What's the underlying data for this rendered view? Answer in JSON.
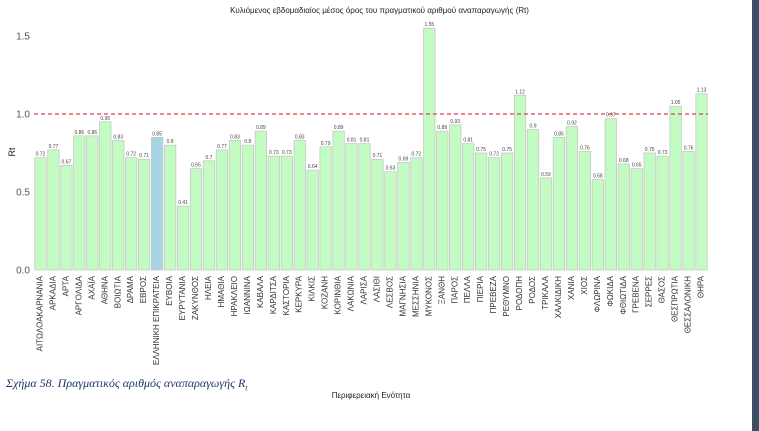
{
  "chart_data": {
    "type": "bar",
    "title": "Κυλιόμενος εβδομαδιαίος μέσος όρος του πραγματικού αριθμού αναπαραγωγής (Rt)",
    "xlabel": "Περιφερειακή Ενότητα",
    "ylabel": "Rt",
    "ylim": [
      0,
      1.6
    ],
    "yticks": [
      "0.0",
      "0.5",
      "1.0",
      "1.5"
    ],
    "ytick_values": [
      0,
      0.5,
      1.0,
      1.5
    ],
    "reference_line": {
      "value": 1.0,
      "style": "dashed",
      "color": "#e0424b"
    },
    "bar_color": "#c2fcc2",
    "highlight_color": "#a8d5e6",
    "highlight_category": "ΕΛΛΗΝΙΚΗ ΕΠΙΚΡΑΤΕΙΑ",
    "categories": [
      "ΑΙΤΩΛΟΑΚΑΡΝΑΝΙΑ",
      "ΑΡΚΑΔΙΑ",
      "ΑΡΤΑ",
      "ΑΡΓΟΛΙΔΑ",
      "ΑΧΑΪΑ",
      "ΑΘΗΝΑ",
      "ΒΟΙΩΤΙΑ",
      "ΔΡΑΜΑ",
      "ΕΒΡΟΣ",
      "ΕΛΛΗΝΙΚΗ ΕΠΙΚΡΑΤΕΙΑ",
      "ΕΥΒΟΙΑ",
      "ΕΥΡΥΤΑΝΙΑ",
      "ΖΑΚΥΝΘΟΣ",
      "ΗΛΕΙΑ",
      "ΗΜΑΘΙΑ",
      "ΗΡΑΚΛΕΙΟ",
      "ΙΩΑΝΝΙΝΑ",
      "ΚΑΒΑΛΑ",
      "ΚΑΡΔΙΤΣΑ",
      "ΚΑΣΤΟΡΙΑ",
      "ΚΕΡΚΥΡΑ",
      "ΚΙΛΚΙΣ",
      "ΚΟΖΑΝΗ",
      "ΚΟΡΙΝΘΙΑ",
      "ΛΑΚΩΝΙΑ",
      "ΛΑΡΙΣΑ",
      "ΛΑΣΙΘΙ",
      "ΛΕΣΒΟΣ",
      "ΜΑΓΝΗΣΙΑ",
      "ΜΕΣΣΗΝΙΑ",
      "ΜΥΚΟΝΟΣ",
      "ΞΑΝΘΗ",
      "ΠΑΡΟΣ",
      "ΠΕΛΛΑ",
      "ΠΙΕΡΙΑ",
      "ΠΡΕΒΕΖΑ",
      "ΡΕΘΥΜΝΟ",
      "ΡΟΔΟΠΗ",
      "ΡΟΔΟΣ",
      "ΤΡΙΚΑΛΑ",
      "ΧΑΛΚΙΔΙΚΗ",
      "ΧΑΝΙΑ",
      "ΧΙΟΣ",
      "ΦΛΩΡΙΝΑ",
      "ΦΩΚΙΔΑ",
      "ΦΘΙΩΤΙΔΑ",
      "ΓΡΕΒΕΝΑ",
      "ΣΕΡΡΕΣ",
      "ΘΑΣΟΣ",
      "ΘΕΣΠΡΩΤΙΑ",
      "ΘΕΣΣΑΛΟΝΙΚΗ",
      "ΘΗΡΑ"
    ],
    "values": [
      0.72,
      0.77,
      0.67,
      0.86,
      0.86,
      0.95,
      0.83,
      0.72,
      0.71,
      0.85,
      0.8,
      0.41,
      0.65,
      0.7,
      0.77,
      0.83,
      0.8,
      0.89,
      0.73,
      0.73,
      0.83,
      0.64,
      0.79,
      0.89,
      0.81,
      0.81,
      0.71,
      0.63,
      0.69,
      0.72,
      1.55,
      0.89,
      0.93,
      0.81,
      0.75,
      0.72,
      0.75,
      1.12,
      0.9,
      0.59,
      0.85,
      0.92,
      0.76,
      0.58,
      0.97,
      0.68,
      0.65,
      0.75,
      0.73,
      1.05,
      0.76,
      1.13
    ]
  },
  "caption": {
    "text": "Σχήμα 58. Πραγματικός αριθμός αναπαραγωγής R",
    "subscript": "t"
  }
}
